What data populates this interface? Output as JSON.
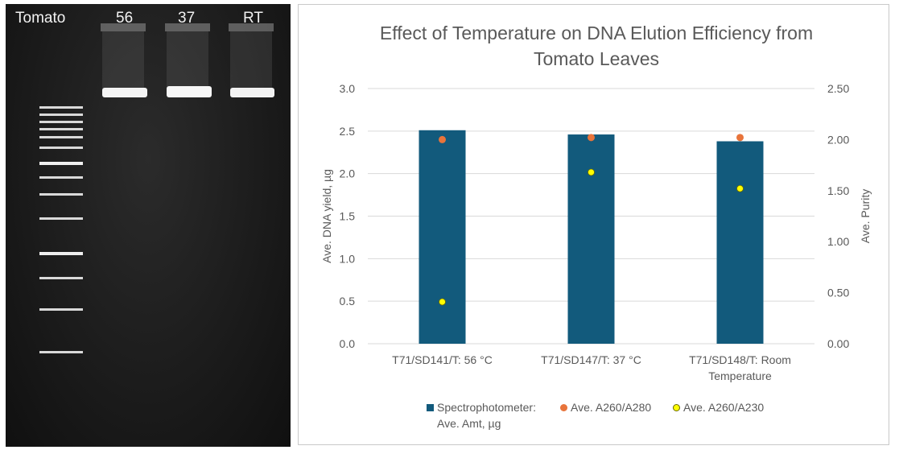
{
  "gel": {
    "ladder_label": "Tomato",
    "lanes": [
      "56",
      "37",
      "RT"
    ]
  },
  "chart_data": {
    "type": "bar",
    "title": "Effect of Temperature on DNA Elution Efficiency from\nTomato Leaves",
    "categories": [
      "T71/SD141/T: 56 °C",
      "T71/SD147/T: 37 °C",
      "T71/SD148/T: Room Temperature"
    ],
    "ylabel": "Ave. DNA yield, µg",
    "y2label": "Ave. Purity",
    "ylim": [
      0,
      3.0
    ],
    "y2lim": [
      0,
      2.5
    ],
    "yticks": [
      "0.0",
      "0.5",
      "1.0",
      "1.5",
      "2.0",
      "2.5",
      "3.0"
    ],
    "y2ticks": [
      "0.00",
      "0.50",
      "1.00",
      "1.50",
      "2.00",
      "2.50"
    ],
    "grid": true,
    "series": [
      {
        "name": "Spectrophotometer: Ave. Amt, µg",
        "kind": "bar",
        "axis": "left",
        "color": "#125a7c",
        "values": [
          2.51,
          2.46,
          2.38
        ]
      },
      {
        "name": "Ave. A260/A280",
        "kind": "point",
        "axis": "right",
        "color": "#e8743b",
        "values": [
          2.0,
          2.02,
          2.02
        ]
      },
      {
        "name": "Ave. A260/A230",
        "kind": "point",
        "axis": "right",
        "color": "#ffff00",
        "values": [
          0.41,
          1.68,
          1.52
        ]
      }
    ],
    "legend": {
      "position": "bottom",
      "items": [
        {
          "line1": "Spectrophotometer:",
          "line2": "Ave. Amt, µg"
        },
        {
          "line1": "Ave. A260/A280"
        },
        {
          "line1": "Ave. A260/A230"
        }
      ]
    }
  }
}
